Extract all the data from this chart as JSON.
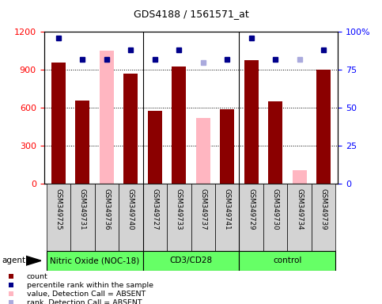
{
  "title": "GDS4188 / 1561571_at",
  "samples": [
    "GSM349725",
    "GSM349731",
    "GSM349736",
    "GSM349740",
    "GSM349727",
    "GSM349733",
    "GSM349737",
    "GSM349741",
    "GSM349729",
    "GSM349730",
    "GSM349734",
    "GSM349739"
  ],
  "bar_values": [
    960,
    660,
    1050,
    870,
    580,
    930,
    520,
    590,
    975,
    650,
    110,
    900
  ],
  "bar_absent": [
    false,
    false,
    true,
    false,
    false,
    false,
    true,
    false,
    false,
    false,
    true,
    false
  ],
  "percentile_values": [
    96,
    82,
    82,
    88,
    82,
    88,
    80,
    82,
    96,
    82,
    82,
    88
  ],
  "percentile_absent": [
    false,
    false,
    false,
    false,
    false,
    false,
    true,
    false,
    false,
    false,
    true,
    false
  ],
  "ylim_left": [
    0,
    1200
  ],
  "ylim_right": [
    0,
    100
  ],
  "yticks_left": [
    0,
    300,
    600,
    900,
    1200
  ],
  "yticks_right": [
    0,
    25,
    50,
    75,
    100
  ],
  "color_bar_present": "#8b0000",
  "color_bar_absent": "#ffb6c1",
  "color_pct_present": "#00008b",
  "color_pct_absent": "#aaaadd",
  "group_boundaries": [
    [
      0,
      3,
      "Nitric Oxide (NOC-18)"
    ],
    [
      4,
      7,
      "CD3/CD28"
    ],
    [
      8,
      11,
      "control"
    ]
  ],
  "group_color": "#66ff66",
  "tick_bg_color": "#d3d3d3",
  "legend_items": [
    {
      "label": "count",
      "color": "#8b0000"
    },
    {
      "label": "percentile rank within the sample",
      "color": "#00008b"
    },
    {
      "label": "value, Detection Call = ABSENT",
      "color": "#ffb6c1"
    },
    {
      "label": "rank, Detection Call = ABSENT",
      "color": "#aaaadd"
    }
  ],
  "figsize": [
    4.83,
    3.84
  ],
  "dpi": 100
}
